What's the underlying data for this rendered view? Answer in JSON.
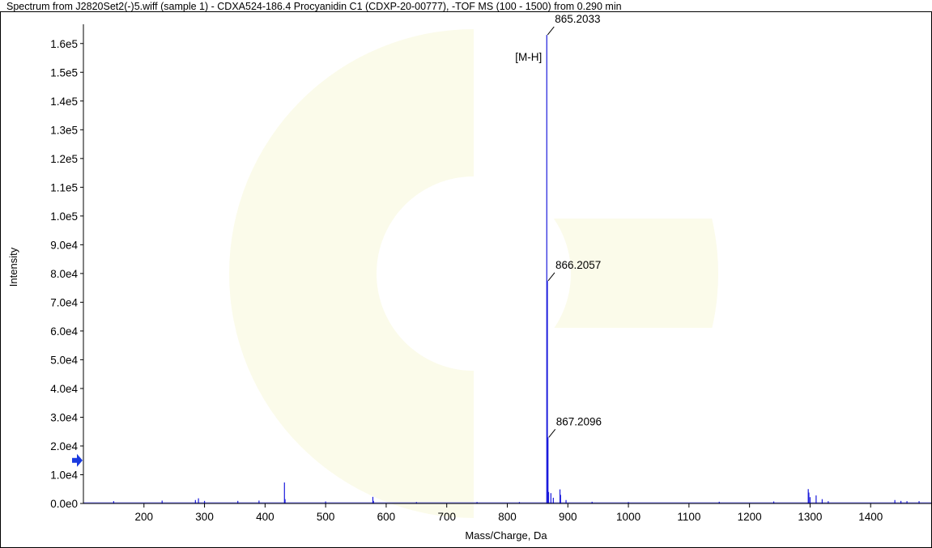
{
  "window": {
    "title": "Spectrum from J2820Set2(-)5.wiff (sample 1) - CDXA524-186.4 Procyanidin C1 (CDXP-20-00777), -TOF MS (100 - 1500) from 0.290 min"
  },
  "chart_data": {
    "type": "line",
    "title": "Spectrum from J2820Set2(-)5.wiff (sample 1) - CDXA524-186.4 Procyanidin C1 (CDXP-20-00777), -TOF MS (100 - 1500) from 0.290 min",
    "xlabel": "Mass/Charge, Da",
    "ylabel": "Intensity",
    "xlim": [
      100,
      1500
    ],
    "ylim": [
      0,
      165000
    ],
    "x_ticks": [
      200,
      300,
      400,
      500,
      600,
      700,
      800,
      900,
      1000,
      1100,
      1200,
      1300,
      1400
    ],
    "y_ticks": [
      {
        "value": 0,
        "label": "0.0e0"
      },
      {
        "value": 10000,
        "label": "1.0e4"
      },
      {
        "value": 20000,
        "label": "2.0e4"
      },
      {
        "value": 30000,
        "label": "3.0e4"
      },
      {
        "value": 40000,
        "label": "4.0e4"
      },
      {
        "value": 50000,
        "label": "5.0e4"
      },
      {
        "value": 60000,
        "label": "6.0e4"
      },
      {
        "value": 70000,
        "label": "7.0e4"
      },
      {
        "value": 80000,
        "label": "8.0e4"
      },
      {
        "value": 90000,
        "label": "9.0e4"
      },
      {
        "value": 100000,
        "label": "1.0e5"
      },
      {
        "value": 110000,
        "label": "1.1e5"
      },
      {
        "value": 120000,
        "label": "1.2e5"
      },
      {
        "value": 130000,
        "label": "1.3e5"
      },
      {
        "value": 140000,
        "label": "1.4e5"
      },
      {
        "value": 150000,
        "label": "1.5e5"
      },
      {
        "value": 160000,
        "label": "1.6e5"
      }
    ],
    "peaks": [
      {
        "x": 150,
        "y": 800
      },
      {
        "x": 230,
        "y": 1000
      },
      {
        "x": 285,
        "y": 1200
      },
      {
        "x": 290,
        "y": 1800
      },
      {
        "x": 300,
        "y": 900
      },
      {
        "x": 355,
        "y": 900
      },
      {
        "x": 390,
        "y": 1000
      },
      {
        "x": 432,
        "y": 7300
      },
      {
        "x": 433,
        "y": 1500
      },
      {
        "x": 500,
        "y": 700
      },
      {
        "x": 578,
        "y": 2300
      },
      {
        "x": 579,
        "y": 900
      },
      {
        "x": 650,
        "y": 500
      },
      {
        "x": 750,
        "y": 500
      },
      {
        "x": 820,
        "y": 500
      },
      {
        "x": 865.2033,
        "y": 163000
      },
      {
        "x": 866.2057,
        "y": 77500
      },
      {
        "x": 867.2096,
        "y": 23000
      },
      {
        "x": 868.2,
        "y": 4000
      },
      {
        "x": 872,
        "y": 3600
      },
      {
        "x": 876,
        "y": 2000
      },
      {
        "x": 887,
        "y": 4900
      },
      {
        "x": 888,
        "y": 3000
      },
      {
        "x": 897,
        "y": 1200
      },
      {
        "x": 940,
        "y": 600
      },
      {
        "x": 1000,
        "y": 500
      },
      {
        "x": 1150,
        "y": 600
      },
      {
        "x": 1240,
        "y": 700
      },
      {
        "x": 1297,
        "y": 5000
      },
      {
        "x": 1298,
        "y": 3800
      },
      {
        "x": 1300,
        "y": 2200
      },
      {
        "x": 1310,
        "y": 2800
      },
      {
        "x": 1320,
        "y": 1500
      },
      {
        "x": 1330,
        "y": 800
      },
      {
        "x": 1440,
        "y": 1200
      },
      {
        "x": 1450,
        "y": 900
      },
      {
        "x": 1460,
        "y": 800
      },
      {
        "x": 1480,
        "y": 800
      }
    ],
    "annotations": [
      {
        "x": 865.2033,
        "y": 163000,
        "text": "865.2033"
      },
      {
        "x": 865.2033,
        "y": 163000,
        "text": "[M-H]"
      },
      {
        "x": 866.2057,
        "y": 77500,
        "text": "866.2057"
      },
      {
        "x": 867.2096,
        "y": 23000,
        "text": "867.2096"
      }
    ],
    "threshold_marker": {
      "y": 15000
    },
    "colors": {
      "series": "#1a1adc",
      "marker": "#1a3adf",
      "watermark": "#f9f9e6"
    }
  }
}
